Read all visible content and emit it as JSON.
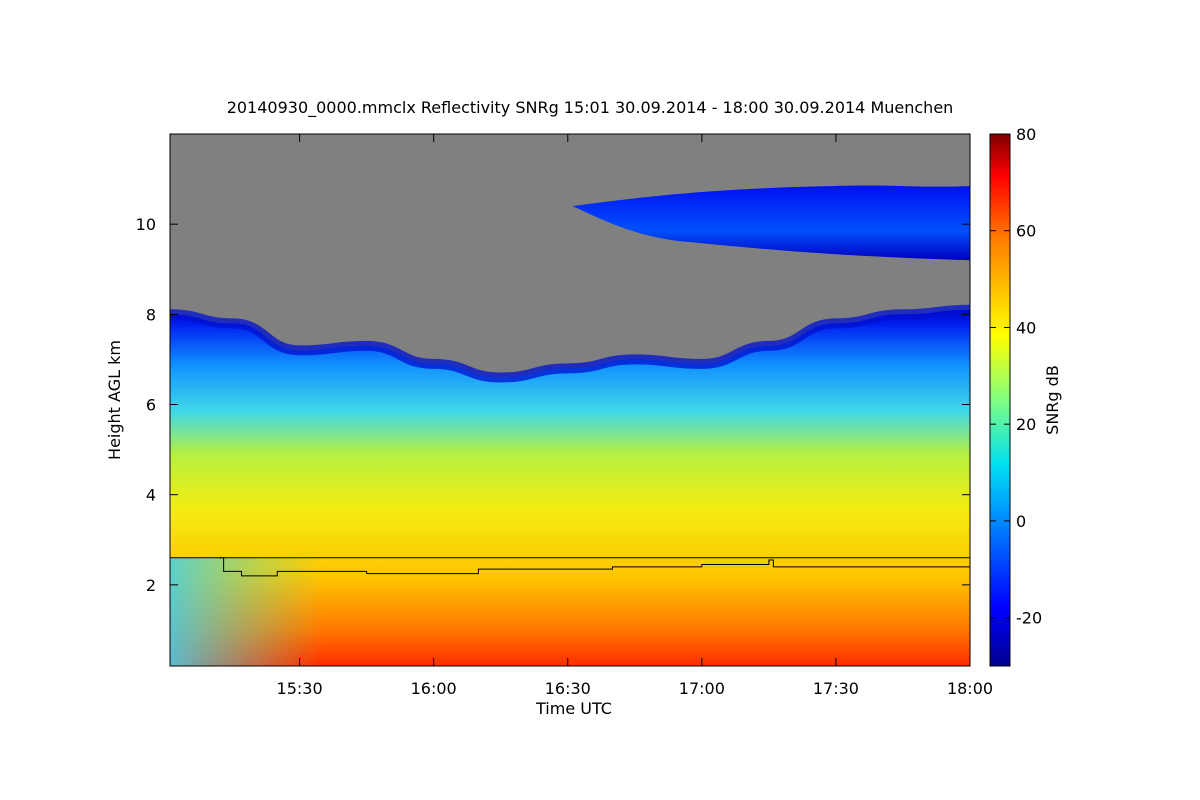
{
  "chart_data": {
    "type": "heatmap",
    "title": "20140930_0000.mmclx Reflectivity SNRg   15:01 30.09.2014 - 18:00 30.09.2014 Muenchen",
    "xlabel": "Time UTC",
    "ylabel": "Height AGL km",
    "x_ticks": [
      "15:30",
      "16:00",
      "16:30",
      "17:00",
      "17:30",
      "18:00"
    ],
    "x_range": [
      "15:01",
      "18:00"
    ],
    "y_ticks": [
      2,
      4,
      6,
      8,
      10
    ],
    "y_range": [
      0.2,
      12
    ],
    "colorbar": {
      "label": "SNRg dB",
      "range": [
        -30,
        80
      ],
      "ticks": [
        -20,
        0,
        20,
        40,
        60,
        80
      ]
    },
    "background_color": "#808080",
    "overlay_lines": [
      {
        "kind": "reference",
        "height_km": 2.6
      },
      {
        "kind": "boundary_layer",
        "points": [
          [
            "15:12",
            2.6
          ],
          [
            "15:13",
            2.3
          ],
          [
            "15:17",
            2.2
          ],
          [
            "15:25",
            2.3
          ],
          [
            "15:45",
            2.25
          ],
          [
            "16:10",
            2.35
          ],
          [
            "16:40",
            2.4
          ],
          [
            "17:00",
            2.45
          ],
          [
            "17:15",
            2.55
          ],
          [
            "17:16",
            2.4
          ],
          [
            "18:00",
            2.38
          ]
        ]
      }
    ],
    "cloud_layers": [
      {
        "name": "main",
        "base_km": 0.2,
        "top_km_profile": [
          [
            "15:01",
            8.0
          ],
          [
            "15:15",
            7.8
          ],
          [
            "15:30",
            7.2
          ],
          [
            "15:45",
            7.3
          ],
          [
            "16:00",
            6.9
          ],
          [
            "16:15",
            6.6
          ],
          [
            "16:30",
            6.8
          ],
          [
            "16:45",
            7.0
          ],
          [
            "17:00",
            6.9
          ],
          [
            "17:15",
            7.3
          ],
          [
            "17:30",
            7.8
          ],
          [
            "17:45",
            8.0
          ],
          [
            "18:00",
            8.1
          ]
        ]
      },
      {
        "name": "upper",
        "from": "16:31",
        "to": "18:00",
        "base_km": 9.2,
        "top_km": 10.8
      }
    ]
  }
}
